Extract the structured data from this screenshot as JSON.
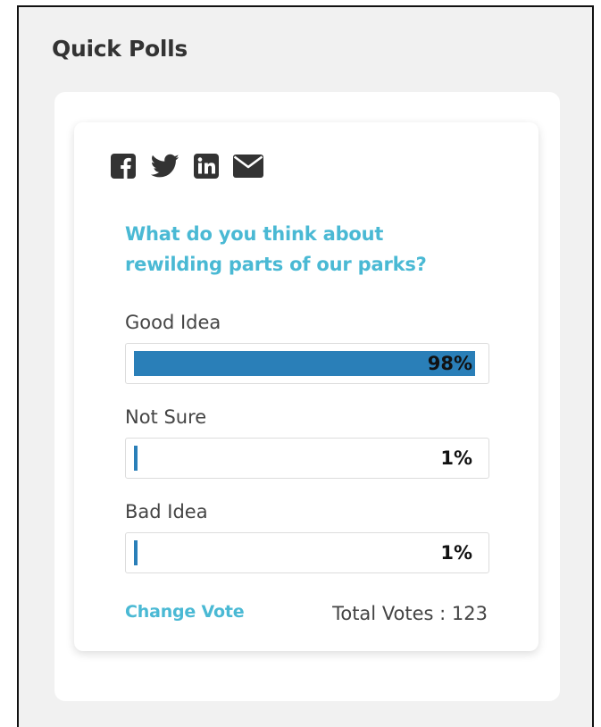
{
  "widget": {
    "title": "Quick Polls"
  },
  "share": {
    "icons": [
      "facebook-icon",
      "twitter-icon",
      "linkedin-icon",
      "email-icon"
    ],
    "icon_color": "#333333"
  },
  "poll": {
    "question": "What do you think about rewilding parts of our parks?",
    "options": [
      {
        "label": "Good Idea",
        "percent_text": "98%",
        "percent": 98
      },
      {
        "label": "Not Sure",
        "percent_text": "1%",
        "percent": 1
      },
      {
        "label": "Bad Idea",
        "percent_text": "1%",
        "percent": 1
      }
    ],
    "change_vote_label": "Change Vote",
    "total_votes_text": "Total Votes : 123"
  },
  "colors": {
    "accent": "#4ab9d4",
    "bar_fill": "#2a7fb8",
    "background": "#f1f1f1"
  }
}
